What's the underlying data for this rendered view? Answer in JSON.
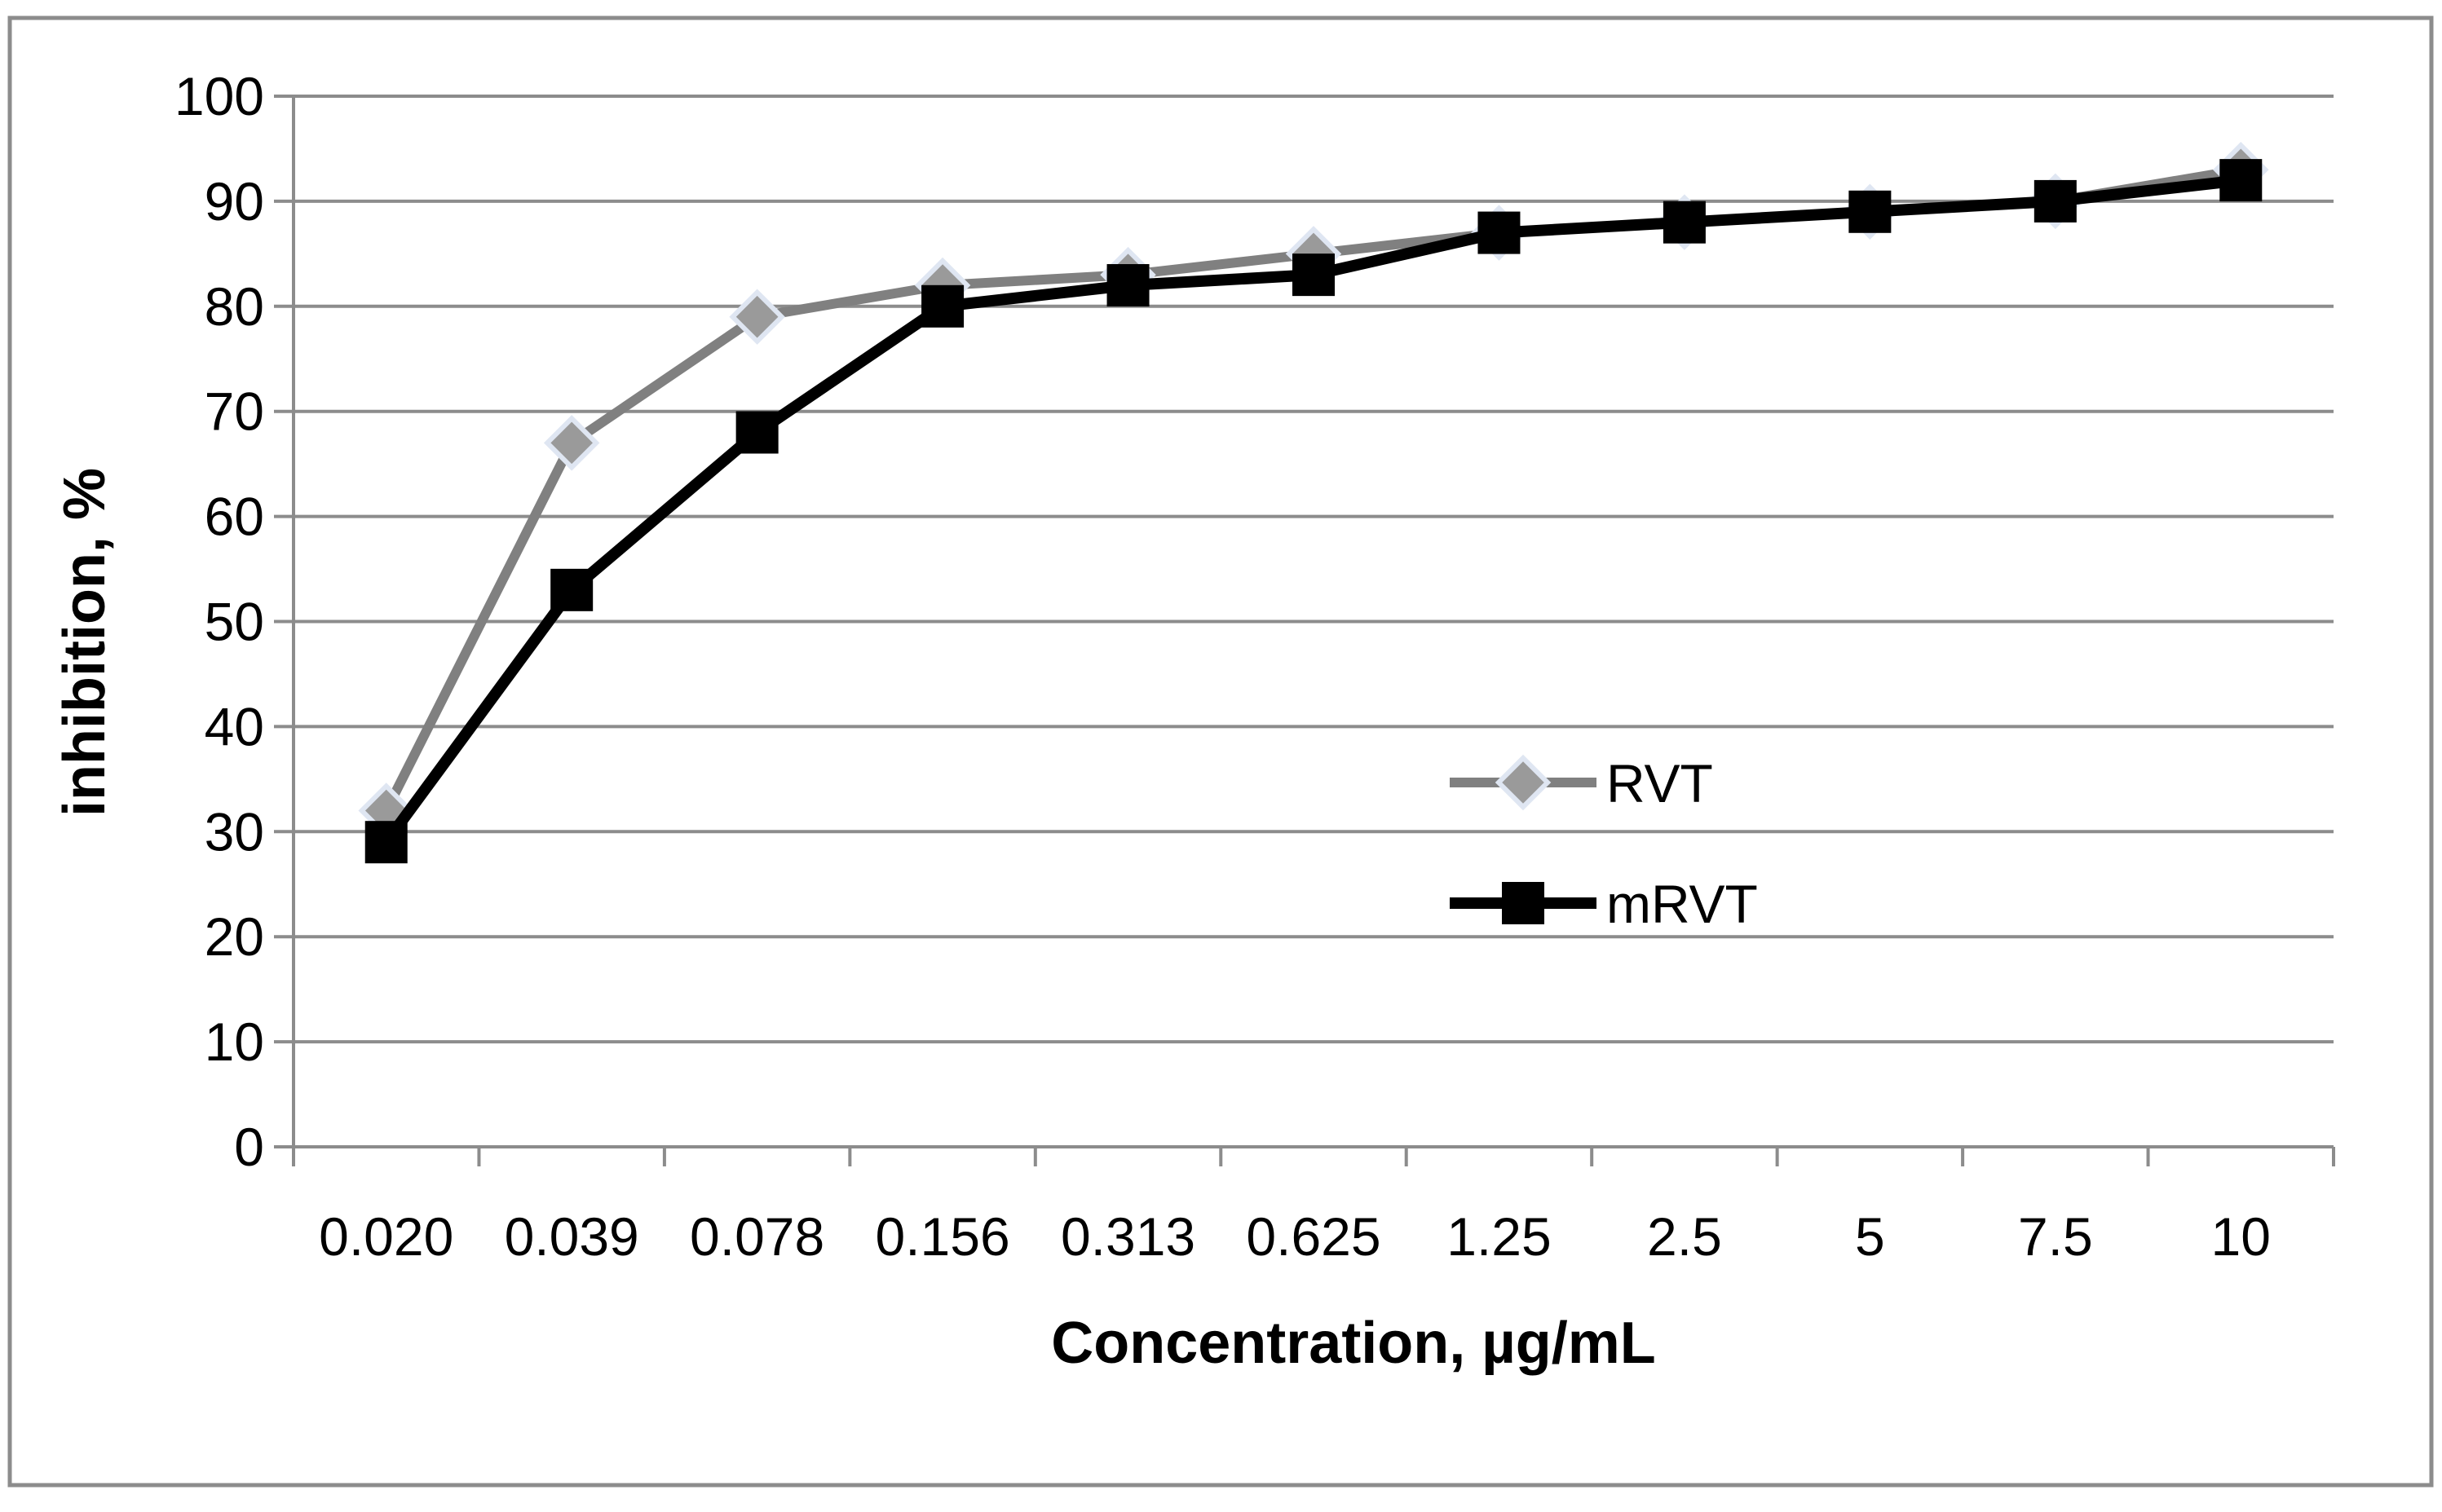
{
  "chart_data": {
    "type": "line",
    "title": "",
    "xlabel": "Concentration, µg/mL",
    "ylabel": "inhibition, %",
    "categories": [
      "0.020",
      "0.039",
      "0.078",
      "0.156",
      "0.313",
      "0.625",
      "1.25",
      "2.5",
      "5",
      "7.5",
      "10"
    ],
    "yticks": [
      "0",
      "10",
      "20",
      "30",
      "40",
      "50",
      "60",
      "70",
      "80",
      "90",
      "100"
    ],
    "ylim": [
      0,
      100
    ],
    "grid": true,
    "legend_position": "center-right",
    "series": [
      {
        "name": "RVT",
        "color": "#808080",
        "marker": "diamond",
        "values": [
          32,
          67,
          79,
          82,
          83,
          85,
          87,
          88,
          89,
          90,
          93
        ]
      },
      {
        "name": "mRVT",
        "color": "#000000",
        "marker": "square",
        "values": [
          29,
          53,
          68,
          80,
          82,
          83,
          87,
          88,
          89,
          90,
          92
        ]
      }
    ]
  }
}
